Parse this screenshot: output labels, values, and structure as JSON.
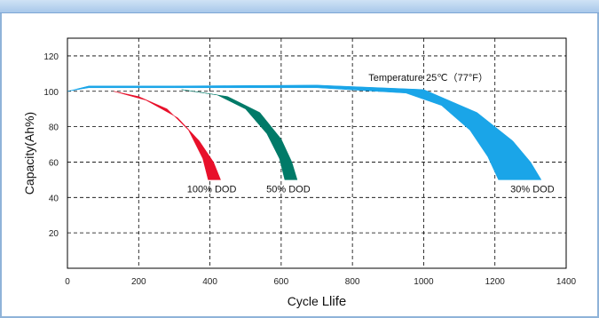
{
  "chart_data": {
    "type": "area",
    "xlabel": "Cycle Llife",
    "ylabel": "Capacity(Ah%)",
    "xlim": [
      0,
      1400
    ],
    "ylim": [
      0,
      130
    ],
    "x_ticks": [
      0,
      200,
      400,
      600,
      800,
      1000,
      1200,
      1400
    ],
    "y_ticks": [
      20,
      40,
      60,
      80,
      100,
      120
    ],
    "grid": true,
    "annotations": {
      "temperature": "Temperature 25℃（77°F）"
    },
    "series": [
      {
        "name": "100% DOD",
        "color": "#e8102a",
        "upper": [
          [
            130,
            100
          ],
          [
            200,
            97
          ],
          [
            280,
            90
          ],
          [
            340,
            78
          ],
          [
            380,
            62
          ],
          [
            395,
            50
          ]
        ],
        "lower": [
          [
            130,
            100
          ],
          [
            220,
            95
          ],
          [
            310,
            85
          ],
          [
            370,
            72
          ],
          [
            410,
            60
          ],
          [
            430,
            50
          ]
        ]
      },
      {
        "name": "50% DOD",
        "color": "#007a68",
        "upper": [
          [
            320,
            101
          ],
          [
            420,
            98
          ],
          [
            500,
            90
          ],
          [
            560,
            76
          ],
          [
            595,
            62
          ],
          [
            610,
            50
          ]
        ],
        "lower": [
          [
            320,
            101
          ],
          [
            450,
            97
          ],
          [
            540,
            88
          ],
          [
            600,
            73
          ],
          [
            630,
            60
          ],
          [
            645,
            50
          ]
        ]
      },
      {
        "name": "30% DOD",
        "color": "#1aa5e8",
        "upper": [
          [
            0,
            100
          ],
          [
            60,
            102
          ],
          [
            300,
            102
          ],
          [
            700,
            102
          ],
          [
            950,
            99
          ],
          [
            1050,
            92
          ],
          [
            1130,
            78
          ],
          [
            1180,
            63
          ],
          [
            1210,
            50
          ]
        ],
        "lower": [
          [
            0,
            100
          ],
          [
            60,
            103
          ],
          [
            300,
            103
          ],
          [
            700,
            103.5
          ],
          [
            1000,
            101
          ],
          [
            1150,
            88
          ],
          [
            1250,
            72
          ],
          [
            1300,
            60
          ],
          [
            1330,
            50
          ]
        ]
      }
    ]
  }
}
